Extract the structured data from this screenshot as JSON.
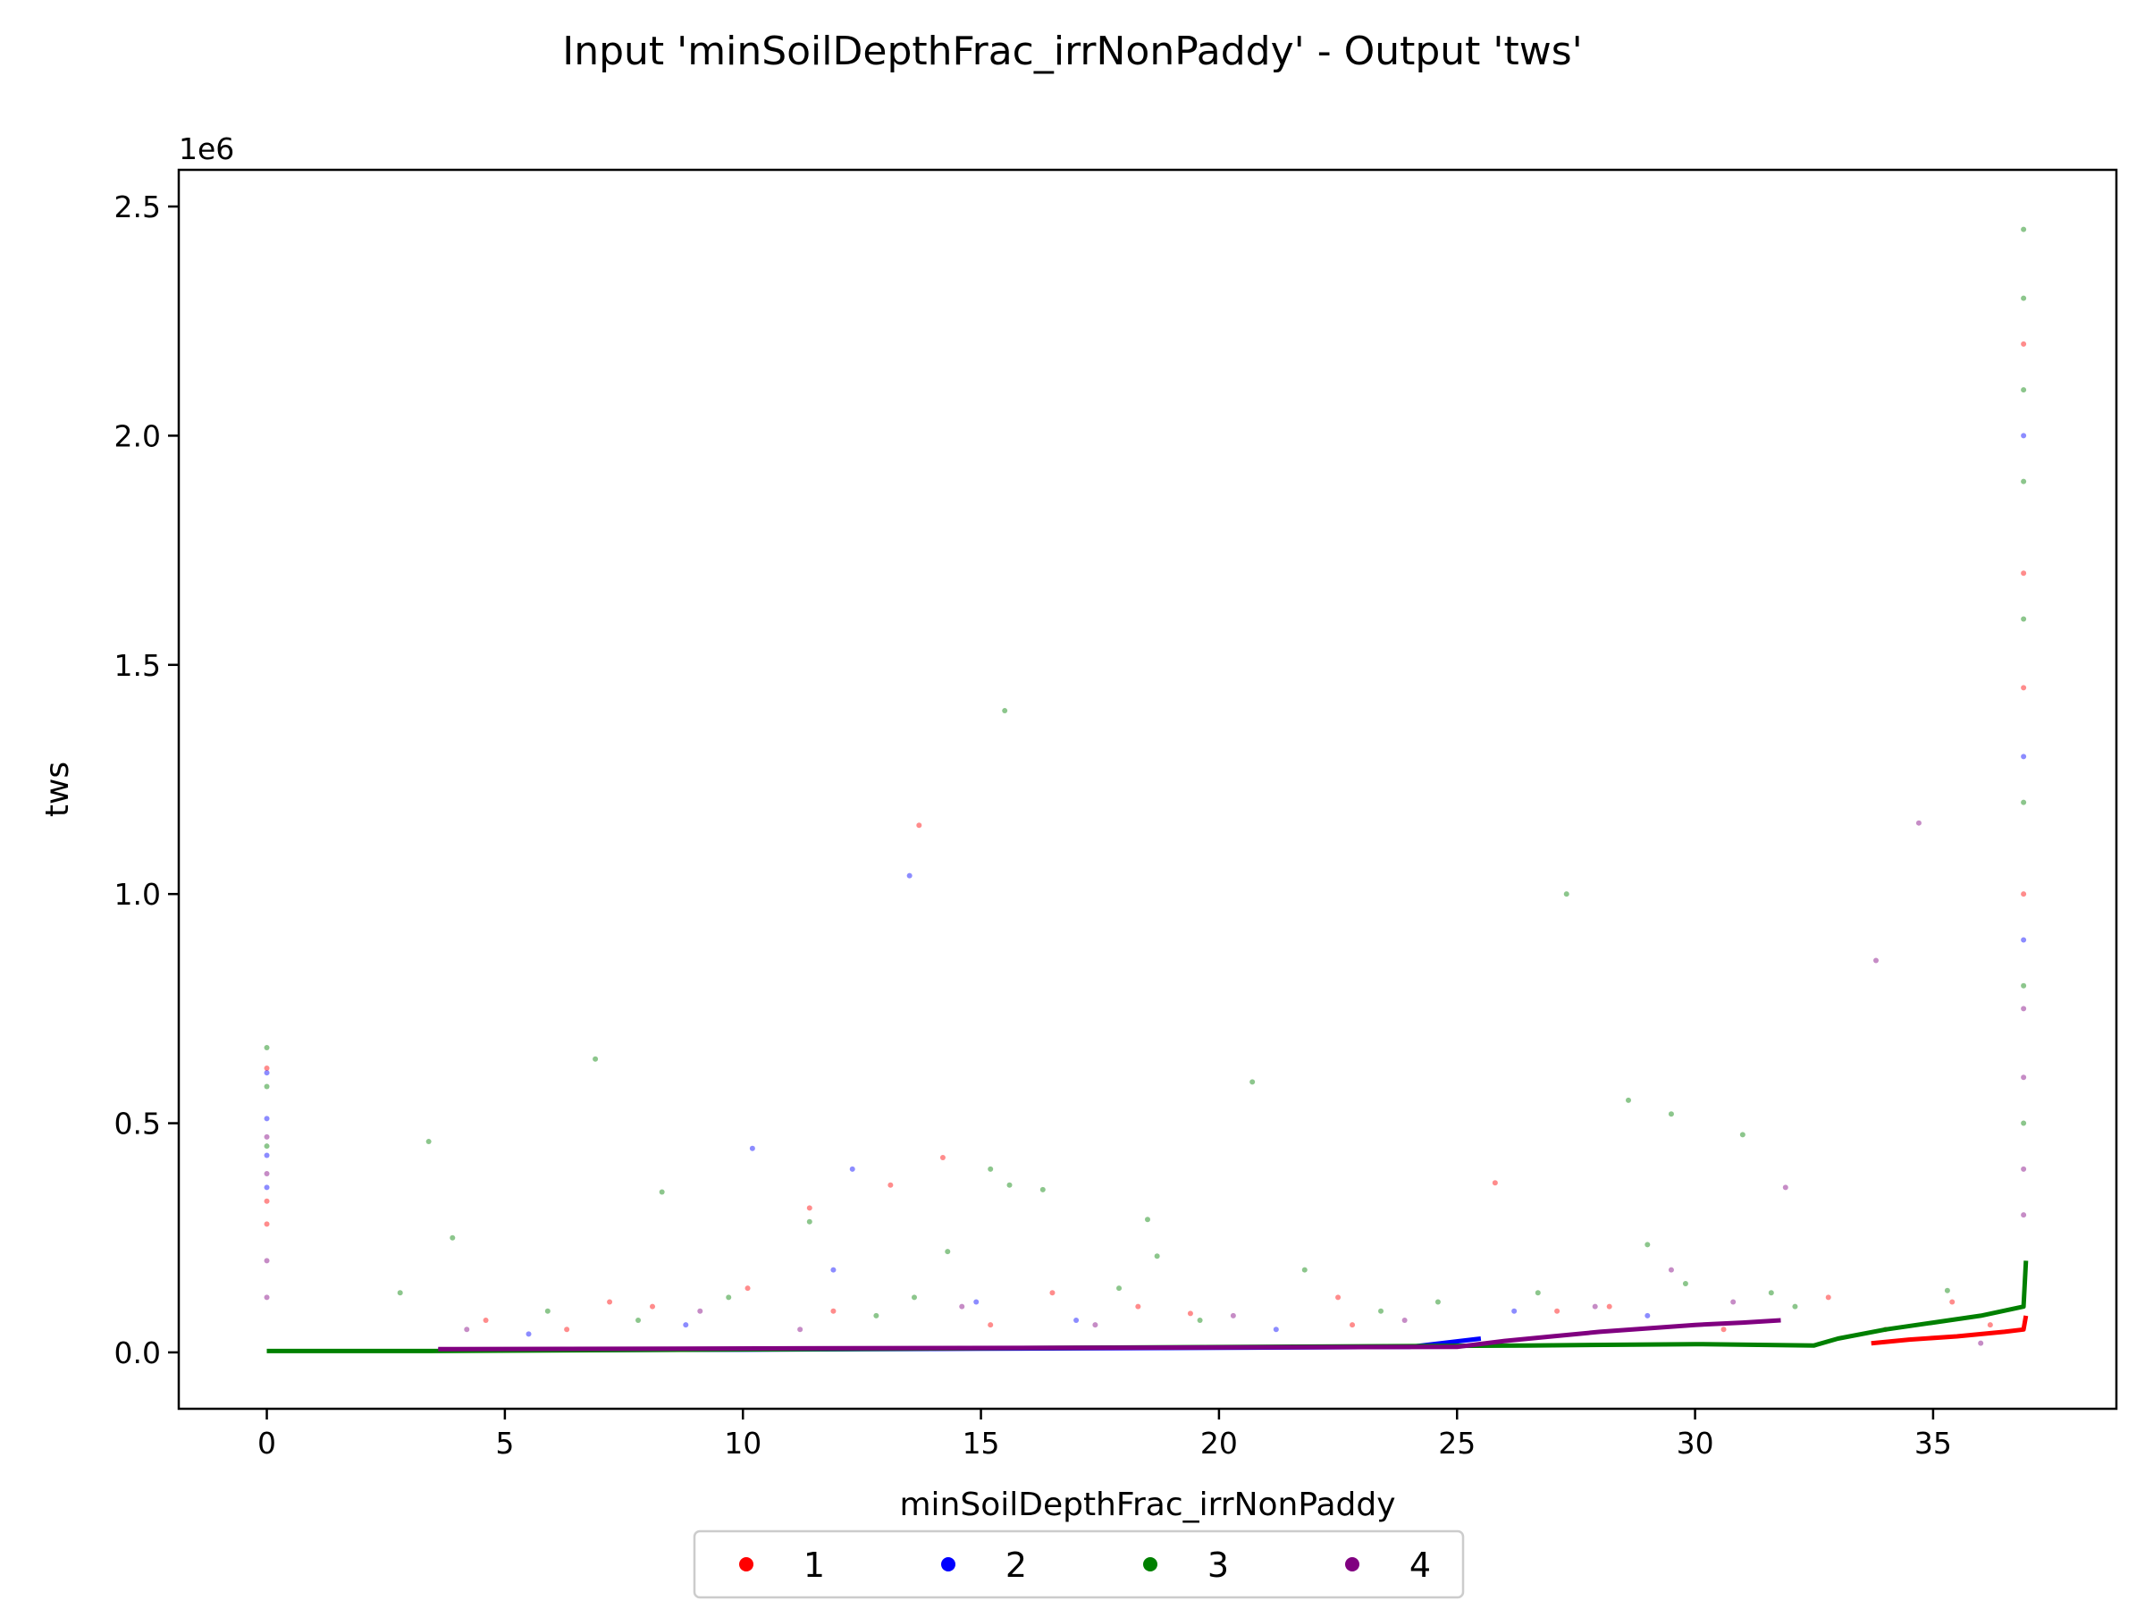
{
  "chart_data": {
    "type": "scatter",
    "title": "Input 'minSoilDepthFrac_irrNonPaddy' - Output 'tws'",
    "xlabel": "minSoilDepthFrac_irrNonPaddy",
    "ylabel": "tws",
    "y_offset_label": "1e6",
    "xlim": [
      -1.85,
      38.85
    ],
    "ylim": [
      -0.123,
      2.58
    ],
    "x_ticks": [
      0,
      5,
      10,
      15,
      20,
      25,
      30,
      35
    ],
    "x_tick_labels": [
      "0",
      "5",
      "10",
      "15",
      "20",
      "25",
      "30",
      "35"
    ],
    "y_ticks": [
      0.0,
      0.5,
      1.0,
      1.5,
      2.0,
      2.5
    ],
    "y_tick_labels": [
      "0.0",
      "0.5",
      "1.0",
      "1.5",
      "2.0",
      "2.5"
    ],
    "grid": false,
    "legend_position": "bottom-center",
    "series": [
      {
        "name": "1",
        "color": "#ff0000",
        "trend": [
          [
            33.7,
            0.02
          ],
          [
            34.5,
            0.028
          ],
          [
            35.5,
            0.035
          ],
          [
            36.5,
            0.045
          ],
          [
            36.9,
            0.05
          ],
          [
            36.95,
            0.08
          ]
        ],
        "points": [
          [
            13.7,
            1.15
          ],
          [
            14.2,
            0.425
          ],
          [
            13.1,
            0.365
          ],
          [
            11.4,
            0.315
          ],
          [
            25.8,
            0.37
          ],
          [
            10.1,
            0.14
          ],
          [
            22.5,
            0.12
          ],
          [
            18.3,
            0.1
          ],
          [
            32.8,
            0.12
          ],
          [
            8.1,
            0.1
          ],
          [
            0.0,
            0.33
          ],
          [
            0.0,
            0.28
          ],
          [
            0.0,
            0.62
          ],
          [
            36.9,
            2.2
          ],
          [
            36.9,
            1.7
          ],
          [
            36.9,
            1.45
          ],
          [
            36.9,
            1.0
          ],
          [
            7.2,
            0.11
          ],
          [
            16.5,
            0.13
          ],
          [
            28.2,
            0.1
          ],
          [
            4.6,
            0.07
          ],
          [
            11.9,
            0.09
          ],
          [
            19.4,
            0.085
          ],
          [
            27.1,
            0.09
          ],
          [
            34.0,
            0.05
          ],
          [
            35.4,
            0.11
          ],
          [
            36.2,
            0.06
          ],
          [
            6.3,
            0.05
          ],
          [
            15.2,
            0.06
          ],
          [
            22.8,
            0.06
          ],
          [
            30.6,
            0.05
          ]
        ]
      },
      {
        "name": "2",
        "color": "#0000ff",
        "trend": [
          [
            3.6,
            0.005
          ],
          [
            10.0,
            0.006
          ],
          [
            15.0,
            0.008
          ],
          [
            20.0,
            0.01
          ],
          [
            24.0,
            0.012
          ],
          [
            25.5,
            0.03
          ]
        ],
        "points": [
          [
            13.5,
            1.04
          ],
          [
            10.2,
            0.445
          ],
          [
            12.3,
            0.4
          ],
          [
            0.0,
            0.61
          ],
          [
            0.0,
            0.51
          ],
          [
            0.0,
            0.43
          ],
          [
            0.0,
            0.36
          ],
          [
            11.9,
            0.18
          ],
          [
            14.9,
            0.11
          ],
          [
            36.9,
            1.3
          ],
          [
            36.9,
            0.9
          ],
          [
            36.9,
            2.0
          ],
          [
            17.0,
            0.07
          ],
          [
            26.2,
            0.09
          ],
          [
            5.5,
            0.04
          ],
          [
            21.2,
            0.05
          ],
          [
            29.0,
            0.08
          ],
          [
            8.8,
            0.06
          ]
        ]
      },
      {
        "name": "3",
        "color": "#008000",
        "trend": [
          [
            0.0,
            0.003
          ],
          [
            3.4,
            0.003
          ],
          [
            26.5,
            0.015
          ],
          [
            30.0,
            0.018
          ],
          [
            32.5,
            0.015
          ],
          [
            33.0,
            0.03
          ],
          [
            34.0,
            0.05
          ],
          [
            35.0,
            0.065
          ],
          [
            36.0,
            0.08
          ],
          [
            36.9,
            0.1
          ],
          [
            36.95,
            0.2
          ]
        ],
        "points": [
          [
            15.5,
            1.4
          ],
          [
            27.3,
            1.0
          ],
          [
            6.9,
            0.64
          ],
          [
            20.7,
            0.59
          ],
          [
            28.6,
            0.55
          ],
          [
            29.5,
            0.52
          ],
          [
            31.0,
            0.475
          ],
          [
            3.4,
            0.46
          ],
          [
            15.2,
            0.4
          ],
          [
            8.3,
            0.35
          ],
          [
            15.6,
            0.365
          ],
          [
            16.3,
            0.355
          ],
          [
            3.9,
            0.25
          ],
          [
            29.0,
            0.235
          ],
          [
            14.3,
            0.22
          ],
          [
            18.7,
            0.21
          ],
          [
            11.4,
            0.285
          ],
          [
            18.5,
            0.29
          ],
          [
            0.0,
            0.665
          ],
          [
            0.0,
            0.58
          ],
          [
            0.0,
            0.45
          ],
          [
            36.9,
            2.45
          ],
          [
            36.9,
            2.3
          ],
          [
            36.9,
            2.1
          ],
          [
            36.9,
            1.9
          ],
          [
            36.9,
            1.6
          ],
          [
            36.9,
            1.2
          ],
          [
            36.9,
            0.8
          ],
          [
            36.9,
            0.5
          ],
          [
            35.3,
            0.135
          ],
          [
            2.8,
            0.13
          ],
          [
            9.7,
            0.12
          ],
          [
            21.8,
            0.18
          ],
          [
            24.6,
            0.11
          ],
          [
            29.8,
            0.15
          ],
          [
            31.6,
            0.13
          ],
          [
            13.6,
            0.12
          ],
          [
            17.9,
            0.14
          ],
          [
            26.7,
            0.13
          ],
          [
            5.9,
            0.09
          ],
          [
            12.8,
            0.08
          ],
          [
            23.4,
            0.09
          ],
          [
            32.1,
            0.1
          ],
          [
            19.6,
            0.07
          ],
          [
            7.8,
            0.07
          ]
        ]
      },
      {
        "name": "4",
        "color": "#800080",
        "trend": [
          [
            3.6,
            0.007
          ],
          [
            25.0,
            0.012
          ],
          [
            26.0,
            0.025
          ],
          [
            27.0,
            0.035
          ],
          [
            28.0,
            0.045
          ],
          [
            30.0,
            0.06
          ],
          [
            31.0,
            0.065
          ],
          [
            31.8,
            0.07
          ]
        ],
        "points": [
          [
            31.9,
            0.36
          ],
          [
            34.7,
            1.155
          ],
          [
            33.8,
            0.855
          ],
          [
            0.0,
            0.47
          ],
          [
            0.0,
            0.39
          ],
          [
            0.0,
            0.2
          ],
          [
            0.0,
            0.12
          ],
          [
            36.9,
            0.75
          ],
          [
            36.9,
            0.6
          ],
          [
            36.9,
            0.4
          ],
          [
            36.9,
            0.3
          ],
          [
            29.5,
            0.18
          ],
          [
            9.1,
            0.09
          ],
          [
            14.6,
            0.1
          ],
          [
            20.3,
            0.08
          ],
          [
            27.9,
            0.1
          ],
          [
            4.2,
            0.05
          ],
          [
            17.4,
            0.06
          ],
          [
            23.9,
            0.07
          ],
          [
            30.8,
            0.11
          ],
          [
            11.2,
            0.05
          ],
          [
            36.0,
            0.02
          ]
        ]
      }
    ]
  }
}
